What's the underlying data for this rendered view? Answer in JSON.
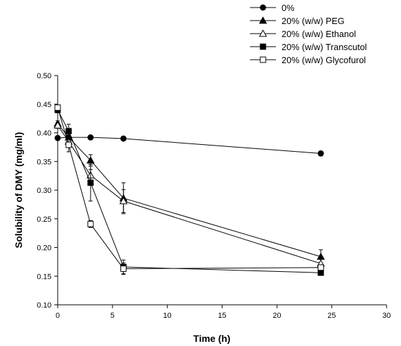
{
  "chart_data": {
    "type": "line",
    "xlabel": "Time (h)",
    "ylabel": "Solubility of DMY (mg/ml)",
    "xlim": [
      0,
      30
    ],
    "ylim": [
      0.1,
      0.5
    ],
    "xticks": [
      "0",
      "5",
      "10",
      "15",
      "20",
      "25",
      "30"
    ],
    "yticks": [
      "0.10",
      "0.15",
      "0.20",
      "0.25",
      "0.30",
      "0.35",
      "0.40",
      "0.45",
      "0.50"
    ],
    "legend_position": "top",
    "grid": false,
    "series": [
      {
        "name": "0%",
        "marker": "circle-filled",
        "x": [
          0,
          1,
          3,
          6,
          24
        ],
        "y": [
          0.391,
          0.392,
          0.392,
          0.39,
          0.364
        ],
        "err": [
          0,
          0,
          0,
          0,
          0.004
        ]
      },
      {
        "name": "20% (w/w) PEG",
        "marker": "triangle-filled",
        "x": [
          0,
          1,
          3,
          6,
          24
        ],
        "y": [
          0.416,
          0.392,
          0.352,
          0.286,
          0.184
        ],
        "err": [
          0.005,
          0.01,
          0.01,
          0.027,
          0.012
        ]
      },
      {
        "name": "20% (w/w) Ethanol",
        "marker": "triangle-open",
        "x": [
          0,
          1,
          3,
          6,
          24
        ],
        "y": [
          0.413,
          0.385,
          0.326,
          0.281,
          0.172
        ],
        "err": [
          0.005,
          0.008,
          0.01,
          0.02,
          0.01
        ]
      },
      {
        "name": "20% (w/w) Transcutol",
        "marker": "square-filled",
        "x": [
          0,
          1,
          3,
          6,
          24
        ],
        "y": [
          0.44,
          0.403,
          0.313,
          0.166,
          0.156
        ],
        "err": [
          0.005,
          0.012,
          0.032,
          0.012,
          0.003
        ]
      },
      {
        "name": "20% (w/w) Glycofurol",
        "marker": "square-open",
        "x": [
          0,
          1,
          3,
          6,
          24
        ],
        "y": [
          0.444,
          0.379,
          0.241,
          0.163,
          0.165
        ],
        "err": [
          0.004,
          0.012,
          0.006,
          0.01,
          0.004
        ]
      }
    ]
  }
}
